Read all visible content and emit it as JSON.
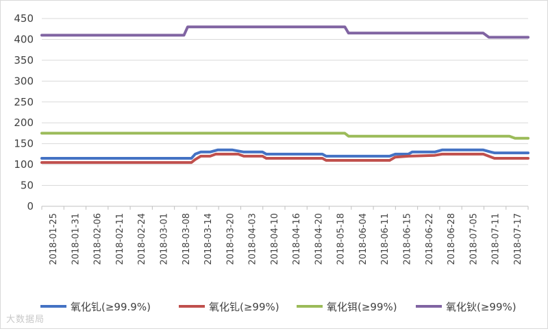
{
  "chart_data": {
    "type": "line",
    "title": "",
    "xlabel": "",
    "ylabel": "",
    "ylim": [
      0,
      450
    ],
    "yticks": [
      0,
      50,
      100,
      150,
      200,
      250,
      300,
      350,
      400,
      450
    ],
    "grid": "horizontal",
    "legend_position": "bottom",
    "x_tick_labels": [
      "2018-01-25",
      "2018-01-31",
      "2018-02-06",
      "2018-02-11",
      "2018-02-24",
      "2018-03-01",
      "2018-03-08",
      "2018-03-14",
      "2018-03-20",
      "2018-04-03",
      "2018-04-10",
      "2018-04-16",
      "2018-04-20",
      "2018-05-18",
      "2018-06-04",
      "2018-06-11",
      "2018-06-15",
      "2018-06-22",
      "2018-06-28",
      "2018-07-05",
      "2018-07-11",
      "2018-07-17"
    ],
    "series": [
      {
        "name": "氧化钆(≥99.9%)",
        "color": "#4472c4",
        "points": [
          [
            0,
            115
          ],
          [
            8,
            115
          ],
          [
            8.2,
            125
          ],
          [
            8.5,
            130
          ],
          [
            9,
            130
          ],
          [
            9.4,
            135
          ],
          [
            10.2,
            135
          ],
          [
            10.8,
            130
          ],
          [
            11.8,
            130
          ],
          [
            12,
            125
          ],
          [
            15,
            125
          ],
          [
            15.2,
            120
          ],
          [
            18.6,
            120
          ],
          [
            18.9,
            125
          ],
          [
            19.6,
            125
          ],
          [
            19.8,
            130
          ],
          [
            21,
            130
          ],
          [
            21.4,
            135
          ],
          [
            23.6,
            135
          ],
          [
            24,
            130
          ],
          [
            24.2,
            128
          ],
          [
            26,
            128
          ]
        ]
      },
      {
        "name": "氧化钆(≥99%)",
        "color": "#c0504d",
        "points": [
          [
            0,
            105
          ],
          [
            8,
            105
          ],
          [
            8.2,
            112
          ],
          [
            8.5,
            120
          ],
          [
            9,
            120
          ],
          [
            9.3,
            125
          ],
          [
            10.5,
            125
          ],
          [
            10.8,
            120
          ],
          [
            11.8,
            120
          ],
          [
            12,
            115
          ],
          [
            15,
            115
          ],
          [
            15.2,
            110
          ],
          [
            18.6,
            110
          ],
          [
            18.9,
            118
          ],
          [
            19.6,
            120
          ],
          [
            21,
            122
          ],
          [
            21.4,
            125
          ],
          [
            23.6,
            125
          ],
          [
            24.2,
            115
          ],
          [
            26,
            115
          ]
        ]
      },
      {
        "name": "氧化铒(≥99%)",
        "color": "#9bbb59",
        "points": [
          [
            0,
            175
          ],
          [
            16.2,
            175
          ],
          [
            16.4,
            168
          ],
          [
            25,
            168
          ],
          [
            25.3,
            163
          ],
          [
            26,
            163
          ]
        ]
      },
      {
        "name": "氧化钬(≥99%)",
        "color": "#8064a2",
        "points": [
          [
            0,
            410
          ],
          [
            7.6,
            410
          ],
          [
            7.8,
            430
          ],
          [
            16.2,
            430
          ],
          [
            16.4,
            415
          ],
          [
            23.6,
            415
          ],
          [
            23.9,
            405
          ],
          [
            26,
            405
          ]
        ]
      }
    ]
  },
  "watermark": "大数据局"
}
